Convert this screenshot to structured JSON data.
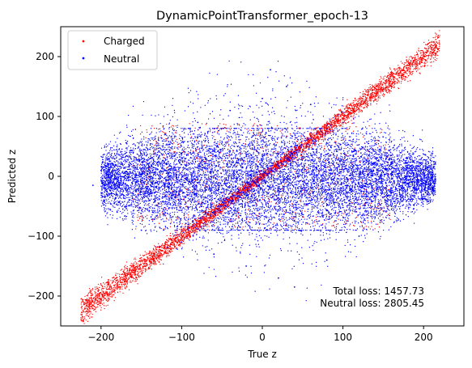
{
  "chart_data": {
    "type": "scatter",
    "title": "DynamicPointTransformer_epoch-13",
    "xlabel": "True z",
    "ylabel": "Predicted z",
    "xlim": [
      -250,
      250
    ],
    "ylim": [
      -250,
      250
    ],
    "xticks": [
      -200,
      -100,
      0,
      100,
      200
    ],
    "yticks": [
      -200,
      -100,
      0,
      100,
      200
    ],
    "xtick_labels": [
      "−200",
      "−100",
      "0",
      "100",
      "200"
    ],
    "ytick_labels": [
      "−200",
      "−100",
      "0",
      "100",
      "200"
    ],
    "grid": false,
    "legend_position": "top-left",
    "series": [
      {
        "name": "Charged",
        "color": "#ff0000",
        "cloud": {
          "linear_band": {
            "x_range": [
              -225,
              220
            ],
            "slope": 1.0,
            "spread": 8
          },
          "core": {
            "x_range": [
              -160,
              160
            ],
            "y_range": [
              -90,
              90
            ]
          }
        },
        "points": [
          [
            -222,
            -242
          ],
          [
            -210,
            -215
          ],
          [
            -200,
            -205
          ],
          [
            -190,
            -188
          ],
          [
            -180,
            -183
          ],
          [
            -170,
            -165
          ],
          [
            -160,
            -150
          ],
          [
            -150,
            -140
          ],
          [
            -140,
            -128
          ],
          [
            -130,
            -118
          ],
          [
            -120,
            -110
          ],
          [
            -110,
            -100
          ],
          [
            -100,
            -92
          ],
          [
            -90,
            -85
          ],
          [
            90,
            85
          ],
          [
            100,
            95
          ],
          [
            110,
            100
          ],
          [
            120,
            112
          ],
          [
            130,
            120
          ],
          [
            140,
            135
          ],
          [
            150,
            145
          ],
          [
            160,
            150
          ],
          [
            170,
            165
          ],
          [
            180,
            178
          ],
          [
            190,
            188
          ],
          [
            200,
            200
          ],
          [
            210,
            215
          ],
          [
            218,
            232
          ]
        ]
      },
      {
        "name": "Neutral",
        "color": "#0000ff",
        "cloud": {
          "core": {
            "x_range": [
              -200,
              215
            ],
            "y_range": [
              -70,
              60
            ]
          },
          "outer": {
            "x_range": [
              -200,
              215
            ],
            "y_range": [
              -200,
              180
            ]
          }
        },
        "points": [
          [
            -210,
            -15
          ],
          [
            -200,
            10
          ],
          [
            -180,
            -60
          ],
          [
            -160,
            40
          ],
          [
            -150,
            -90
          ],
          [
            -120,
            70
          ],
          [
            -100,
            -110
          ],
          [
            -80,
            90
          ],
          [
            -60,
            -130
          ],
          [
            -40,
            110
          ],
          [
            -20,
            -150
          ],
          [
            0,
            130
          ],
          [
            10,
            178
          ],
          [
            20,
            -170
          ],
          [
            30,
            150
          ],
          [
            40,
            -185
          ],
          [
            60,
            120
          ],
          [
            80,
            -140
          ],
          [
            100,
            90
          ],
          [
            120,
            -100
          ],
          [
            140,
            60
          ],
          [
            160,
            -50
          ],
          [
            180,
            30
          ],
          [
            200,
            -30
          ],
          [
            212,
            15
          ]
        ]
      }
    ],
    "annotations": [
      "Total loss: 1457.73",
      "Neutral loss: 2805.45"
    ]
  }
}
